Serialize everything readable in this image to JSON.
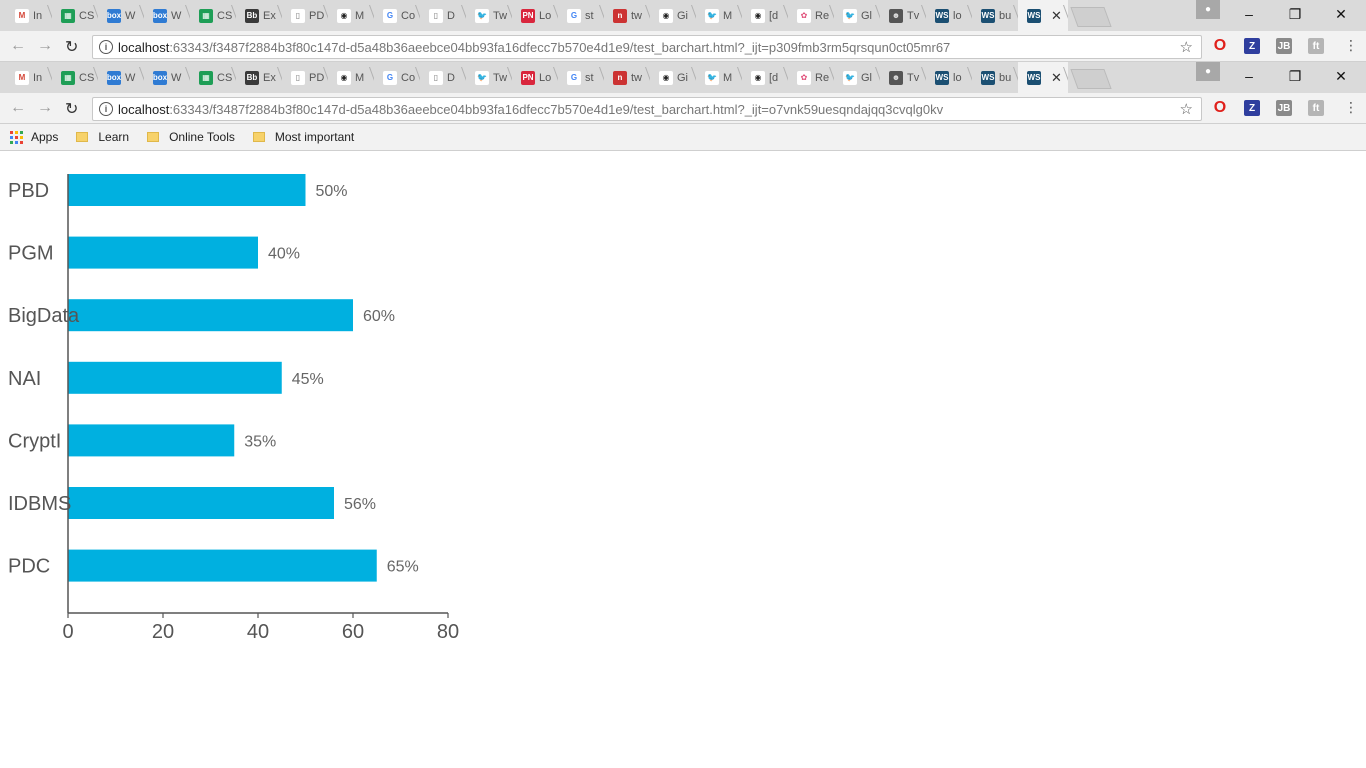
{
  "browser": {
    "windows": [
      {
        "tabs": [
          {
            "label": "In",
            "color": "#ffffff",
            "glyph": "M",
            "fg": "#d44638"
          },
          {
            "label": "CS",
            "color": "#1e9e56",
            "glyph": "▦",
            "fg": "#fff"
          },
          {
            "label": "W",
            "color": "#2f7bd3",
            "glyph": "box",
            "fg": "#fff"
          },
          {
            "label": "W",
            "color": "#2f7bd3",
            "glyph": "box",
            "fg": "#fff"
          },
          {
            "label": "CS",
            "color": "#1e9e56",
            "glyph": "▦",
            "fg": "#fff"
          },
          {
            "label": "Ex",
            "color": "#3a3a3a",
            "glyph": "Bb",
            "fg": "#fff"
          },
          {
            "label": "PD",
            "color": "#ffffff",
            "glyph": "▯",
            "fg": "#777"
          },
          {
            "label": "M",
            "color": "#ffffff",
            "glyph": "◉",
            "fg": "#222"
          },
          {
            "label": "Co",
            "color": "#ffffff",
            "glyph": "G",
            "fg": "#4285f4"
          },
          {
            "label": "D",
            "color": "#ffffff",
            "glyph": "▯",
            "fg": "#777"
          },
          {
            "label": "Tw",
            "color": "#ffffff",
            "glyph": "🐦",
            "fg": "#1da1f2"
          },
          {
            "label": "Lo",
            "color": "#d9263d",
            "glyph": "PN",
            "fg": "#fff"
          },
          {
            "label": "st",
            "color": "#ffffff",
            "glyph": "G",
            "fg": "#4285f4"
          },
          {
            "label": "tw",
            "color": "#cc3333",
            "glyph": "n",
            "fg": "#fff"
          },
          {
            "label": "Gi",
            "color": "#ffffff",
            "glyph": "◉",
            "fg": "#222"
          },
          {
            "label": "M",
            "color": "#ffffff",
            "glyph": "🐦",
            "fg": "#1da1f2"
          },
          {
            "label": "[d",
            "color": "#ffffff",
            "glyph": "◉",
            "fg": "#222"
          },
          {
            "label": "Re",
            "color": "#ffffff",
            "glyph": "✿",
            "fg": "#e0507a"
          },
          {
            "label": "Gl",
            "color": "#ffffff",
            "glyph": "🐦",
            "fg": "#1da1f2"
          },
          {
            "label": "Tv",
            "color": "#555555",
            "glyph": "☻",
            "fg": "#ddd"
          },
          {
            "label": "lo",
            "color": "#1b4f72",
            "glyph": "WS",
            "fg": "#fff"
          },
          {
            "label": "bu",
            "color": "#1b4f72",
            "glyph": "WS",
            "fg": "#fff"
          },
          {
            "label": "",
            "color": "#1b4f72",
            "glyph": "WS",
            "fg": "#fff",
            "active": true
          }
        ],
        "url_host": "localhost",
        "url_rest": ":63343/f3487f2884b3f80c147d-d5a48b36aeebce04bb93fa16dfecc7b570e4d1e9/test_barchart.html?_ijt=p309fmb3rm5qrsqun0ct05mr67"
      },
      {
        "url_host": "localhost",
        "url_rest": ":63343/f3487f2884b3f80c147d-d5a48b36aeebce04bb93fa16dfecc7b570e4d1e9/test_barchart.html?_ijt=o7vnk59uesqndajqq3cvqlg0kv"
      }
    ],
    "window_controls": {
      "minimize": "–",
      "restore": "❐",
      "close": "✕"
    },
    "extensions": [
      {
        "name": "opera-icon",
        "glyph": "O",
        "color": "#e0201b"
      },
      {
        "name": "zotero-icon",
        "glyph": "Z",
        "color": "#2f3e9e"
      },
      {
        "name": "jetbrains-icon",
        "glyph": "JB",
        "color": "#8a8a8a"
      },
      {
        "name": "extension-icon",
        "glyph": "ft",
        "color": "#b5b5b5"
      }
    ],
    "bookmarks": [
      {
        "label": "Apps",
        "type": "apps"
      },
      {
        "label": "Learn",
        "type": "folder"
      },
      {
        "label": "Online Tools",
        "type": "folder"
      },
      {
        "label": "Most important",
        "type": "folder"
      }
    ],
    "tab_close": "✕"
  },
  "chart_data": {
    "type": "bar",
    "orientation": "horizontal",
    "categories": [
      "PBD",
      "PGM",
      "BigData",
      "NAI",
      "CryptI",
      "IDBMS",
      "PDC"
    ],
    "values": [
      50,
      40,
      60,
      45,
      35,
      56,
      65
    ],
    "value_labels": [
      "50%",
      "40%",
      "60%",
      "45%",
      "35%",
      "56%",
      "65%"
    ],
    "xlim": [
      0,
      80
    ],
    "xticks": [
      0,
      20,
      40,
      60,
      80
    ],
    "bar_color": "#00b0e0",
    "grid": false,
    "title": "",
    "xlabel": "",
    "ylabel": ""
  }
}
